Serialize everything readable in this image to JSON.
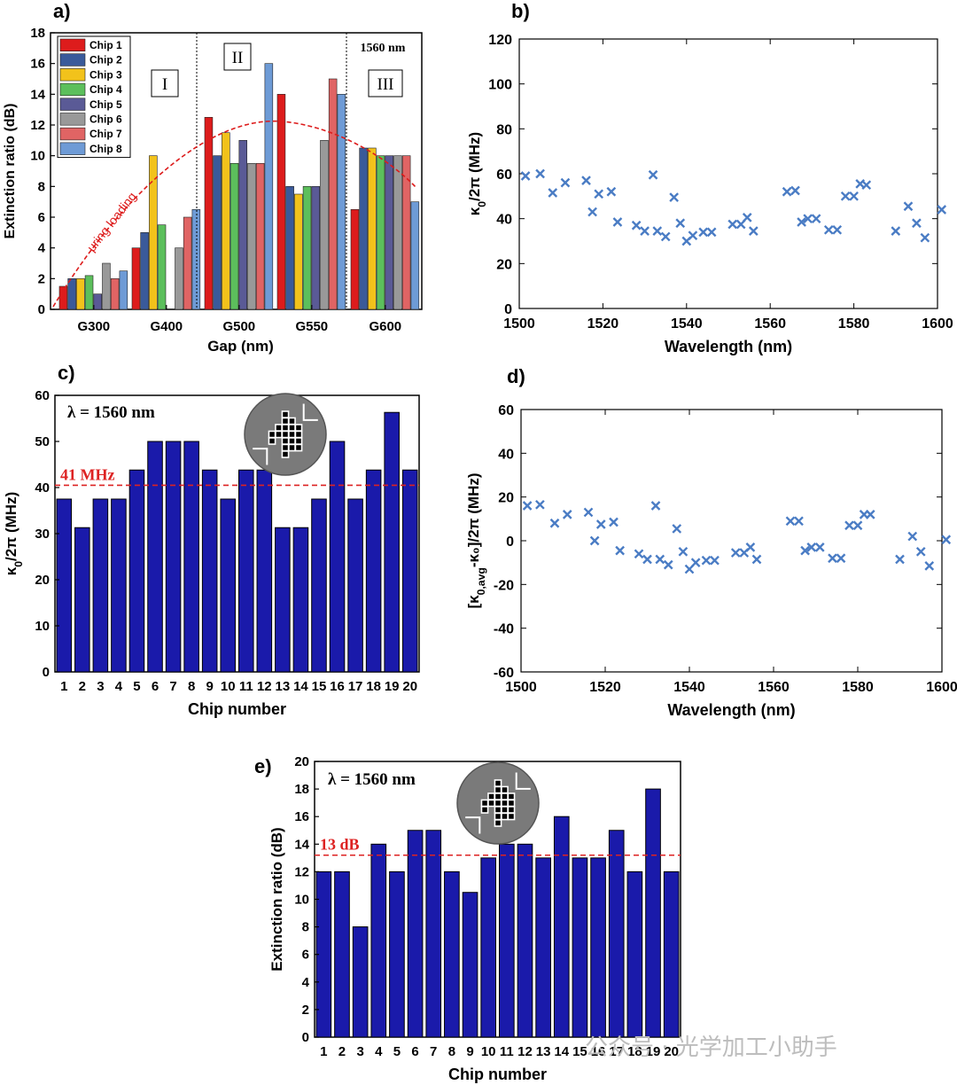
{
  "watermark": "公众号 · 光学加工小助手",
  "chart_data": [
    {
      "panel": "a)",
      "type": "bar",
      "ylabel": "Extinction ratio (dB)",
      "xlabel": "Gap (nm)",
      "ylim": [
        0,
        18
      ],
      "yticks": [
        0,
        2,
        4,
        6,
        8,
        10,
        12,
        14,
        16,
        18
      ],
      "categories": [
        "G300",
        "G400",
        "G500",
        "G550",
        "G600"
      ],
      "series": [
        {
          "name": "Chip 1",
          "color": "#dd1c1c",
          "values": [
            1.5,
            4,
            12.5,
            14,
            6.5
          ]
        },
        {
          "name": "Chip 2",
          "color": "#3a5a9a",
          "values": [
            2,
            5,
            10,
            8,
            10.5
          ]
        },
        {
          "name": "Chip 3",
          "color": "#f2c21b",
          "values": [
            2,
            10,
            11.5,
            7.5,
            10.5
          ]
        },
        {
          "name": "Chip 4",
          "color": "#5cbf5c",
          "values": [
            2.2,
            5.5,
            9.5,
            8,
            10
          ]
        },
        {
          "name": "Chip 5",
          "color": "#5a5a96",
          "values": [
            1,
            null,
            11,
            8,
            10
          ]
        },
        {
          "name": "Chip 6",
          "color": "#999999",
          "values": [
            3,
            4,
            9.5,
            11,
            10
          ]
        },
        {
          "name": "Chip 7",
          "color": "#e06464",
          "values": [
            2,
            6,
            9.5,
            15,
            10
          ]
        },
        {
          "name": "Chip 8",
          "color": "#6e9bd6",
          "values": [
            2.5,
            6.5,
            16,
            14,
            7
          ]
        }
      ],
      "regions": [
        "I",
        "II",
        "III"
      ],
      "annotations": {
        "wavelength": "1560 nm",
        "trend": "μring loading"
      }
    },
    {
      "panel": "b)",
      "type": "scatter",
      "ylabel": "κ0/2π (MHz)",
      "xlabel": "Wavelength (nm)",
      "xlim": [
        1500,
        1600
      ],
      "ylim": [
        0,
        120
      ],
      "xticks": [
        1500,
        1520,
        1540,
        1560,
        1580,
        1600
      ],
      "yticks": [
        0,
        20,
        40,
        60,
        80,
        100,
        120
      ],
      "marker_color": "#4a7cc4",
      "x": [
        1501.5,
        1505,
        1508,
        1511,
        1516,
        1517.5,
        1519,
        1522,
        1523.5,
        1528,
        1530,
        1532,
        1533,
        1535,
        1537,
        1538.5,
        1540,
        1541.5,
        1544,
        1546,
        1551,
        1553,
        1554.5,
        1556,
        1564,
        1566,
        1567.5,
        1569,
        1571,
        1574,
        1576,
        1578,
        1580,
        1581.5,
        1583,
        1590,
        1593,
        1595,
        1597,
        1601
      ],
      "y": [
        59,
        60,
        51.5,
        56,
        57,
        43,
        51,
        52,
        38.5,
        37,
        34.5,
        59.5,
        34.5,
        32,
        49.5,
        38,
        30,
        32.5,
        34,
        34,
        37.5,
        37.5,
        40.5,
        34.5,
        52,
        52.5,
        38.5,
        40,
        40,
        35,
        35,
        50,
        50,
        55.5,
        55,
        34.5,
        45.5,
        38,
        31.5,
        44
      ]
    },
    {
      "panel": "c)",
      "type": "bar",
      "ylabel": "κ0/2π (MHz)",
      "xlabel": "Chip number",
      "ylim": [
        0,
        60
      ],
      "yticks": [
        0,
        10,
        20,
        30,
        40,
        50,
        60
      ],
      "categories": [
        "1",
        "2",
        "3",
        "4",
        "5",
        "6",
        "7",
        "8",
        "9",
        "10",
        "11",
        "12",
        "13",
        "14",
        "15",
        "16",
        "17",
        "18",
        "19",
        "20"
      ],
      "values": [
        37.5,
        31.3,
        37.5,
        37.5,
        43.8,
        50,
        50,
        50,
        43.8,
        37.5,
        43.8,
        43.8,
        31.3,
        31.3,
        37.5,
        50,
        37.5,
        43.8,
        56.3,
        43.8
      ],
      "bar_color": "#1a1aaa",
      "reference_line": {
        "value": 40.5,
        "label": "41 MHz",
        "color": "#dd2222"
      },
      "annotation": "λ = 1560 nm"
    },
    {
      "panel": "d)",
      "type": "scatter",
      "ylabel": "[κ0,avg-κ0]/2π (MHz)",
      "xlabel": "Wavelength (nm)",
      "xlim": [
        1500,
        1600
      ],
      "ylim": [
        -60,
        60
      ],
      "xticks": [
        1500,
        1520,
        1540,
        1560,
        1580,
        1600
      ],
      "yticks": [
        -60,
        -40,
        -20,
        0,
        20,
        40,
        60
      ],
      "marker_color": "#4a7cc4",
      "x": [
        1501.5,
        1504.5,
        1508,
        1511,
        1516,
        1517.5,
        1519,
        1522,
        1523.5,
        1528,
        1530,
        1532,
        1533,
        1535,
        1537,
        1538.5,
        1540,
        1541.5,
        1544,
        1546,
        1551,
        1553,
        1554.5,
        1556,
        1564,
        1566,
        1567.5,
        1569,
        1571,
        1574,
        1576,
        1578,
        1580,
        1581.5,
        1583,
        1590,
        1593,
        1595,
        1597,
        1601
      ],
      "y": [
        16,
        16.5,
        8,
        12,
        13,
        0,
        7.5,
        8.5,
        -4.5,
        -6,
        -8.5,
        16,
        -8.5,
        -11,
        5.5,
        -5,
        -13,
        -10,
        -9,
        -9,
        -5.5,
        -5.5,
        -3,
        -8.5,
        9,
        9,
        -4.5,
        -3,
        -3,
        -8,
        -8,
        7,
        7,
        12,
        12,
        -8.5,
        2,
        -5,
        -11.5,
        0.5
      ]
    },
    {
      "panel": "e)",
      "type": "bar",
      "ylabel": "Extinction ratio (dB)",
      "xlabel": "Chip number",
      "ylim": [
        0,
        20
      ],
      "yticks": [
        0,
        2,
        4,
        6,
        8,
        10,
        12,
        14,
        16,
        18,
        20
      ],
      "categories": [
        "1",
        "2",
        "3",
        "4",
        "5",
        "6",
        "7",
        "8",
        "9",
        "10",
        "11",
        "12",
        "13",
        "14",
        "15",
        "16",
        "17",
        "18",
        "19",
        "20"
      ],
      "values": [
        12,
        12,
        8,
        14,
        12,
        15,
        15,
        12,
        10.5,
        13,
        14,
        14,
        13,
        16,
        13,
        13,
        15,
        12,
        18,
        12
      ],
      "bar_color": "#1a1aaa",
      "reference_line": {
        "value": 13.2,
        "label": "13 dB",
        "color": "#dd2222"
      },
      "annotation": "λ = 1560 nm"
    }
  ]
}
